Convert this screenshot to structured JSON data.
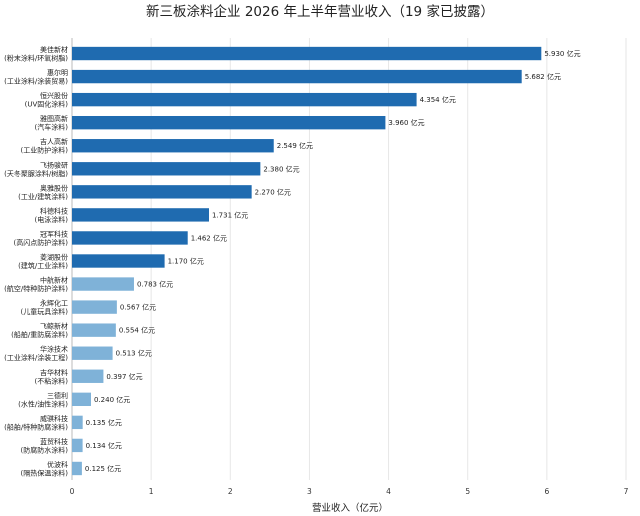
{
  "chart_data": {
    "type": "bar",
    "orientation": "horizontal",
    "title": "新三板涂料企业 2026 年上半年营业收入（19 家已披露）",
    "xlabel": "营业收入（亿元）",
    "ylabel": "",
    "xlim": [
      0,
      7
    ],
    "xticks": [
      "0",
      "1",
      "2",
      "3",
      "4",
      "5",
      "6",
      "7"
    ],
    "grid": "vertical",
    "value_suffix": "亿元",
    "colors": {
      "top10": "#1f6bb0",
      "rest": "#7fb2d8"
    },
    "categories": [
      [
        "美佳新材",
        "(粉末涂料/环氧树脂)"
      ],
      [
        "惠尔明",
        "(工业涂料/涂装贸易)"
      ],
      [
        "恒兴股份",
        "(UV固化涂料)"
      ],
      [
        "雅图高新",
        "(汽车涂料)"
      ],
      [
        "吉人高新",
        "(工业防护涂料)"
      ],
      [
        "飞扬骏研",
        "(天冬聚脲涂料/树脂)"
      ],
      [
        "奥雅股份",
        "(工业/建筑涂料)"
      ],
      [
        "科德科技",
        "(电泳涂料)"
      ],
      [
        "冠军科技",
        "(高闪点防护涂料)"
      ],
      [
        "菱湖股份",
        "(建筑/工业涂料)"
      ],
      [
        "中航新材",
        "(航空/特种防护涂料)"
      ],
      [
        "永辉化工",
        "(儿童玩具涂料)"
      ],
      [
        "飞鲸新材",
        "(船舶/重防腐涂料)"
      ],
      [
        "华涂技术",
        "(工业涂料/涂装工程)"
      ],
      [
        "吉华材料",
        "(不粘涂料)"
      ],
      [
        "三德利",
        "(水性/油性涂料)"
      ],
      [
        "威骐科技",
        "(船舶/特种防腐涂料)"
      ],
      [
        "蓝贸科技",
        "(防腐防水涂料)"
      ],
      [
        "优波科",
        "(隔热保温涂料)"
      ]
    ],
    "values": [
      5.93,
      5.682,
      4.354,
      3.96,
      2.549,
      2.38,
      2.27,
      1.731,
      1.462,
      1.17,
      0.783,
      0.567,
      0.554,
      0.513,
      0.397,
      0.24,
      0.135,
      0.134,
      0.125
    ],
    "value_labels": [
      "5.930 亿元",
      "5.682 亿元",
      "4.354 亿元",
      "3.960 亿元",
      "2.549 亿元",
      "2.380 亿元",
      "2.270 亿元",
      "1.731 亿元",
      "1.462 亿元",
      "1.170 亿元",
      "0.783 亿元",
      "0.567 亿元",
      "0.554 亿元",
      "0.513 亿元",
      "0.397 亿元",
      "0.240 亿元",
      "0.135 亿元",
      "0.134 亿元",
      "0.125 亿元"
    ],
    "highlight_count": 10
  }
}
